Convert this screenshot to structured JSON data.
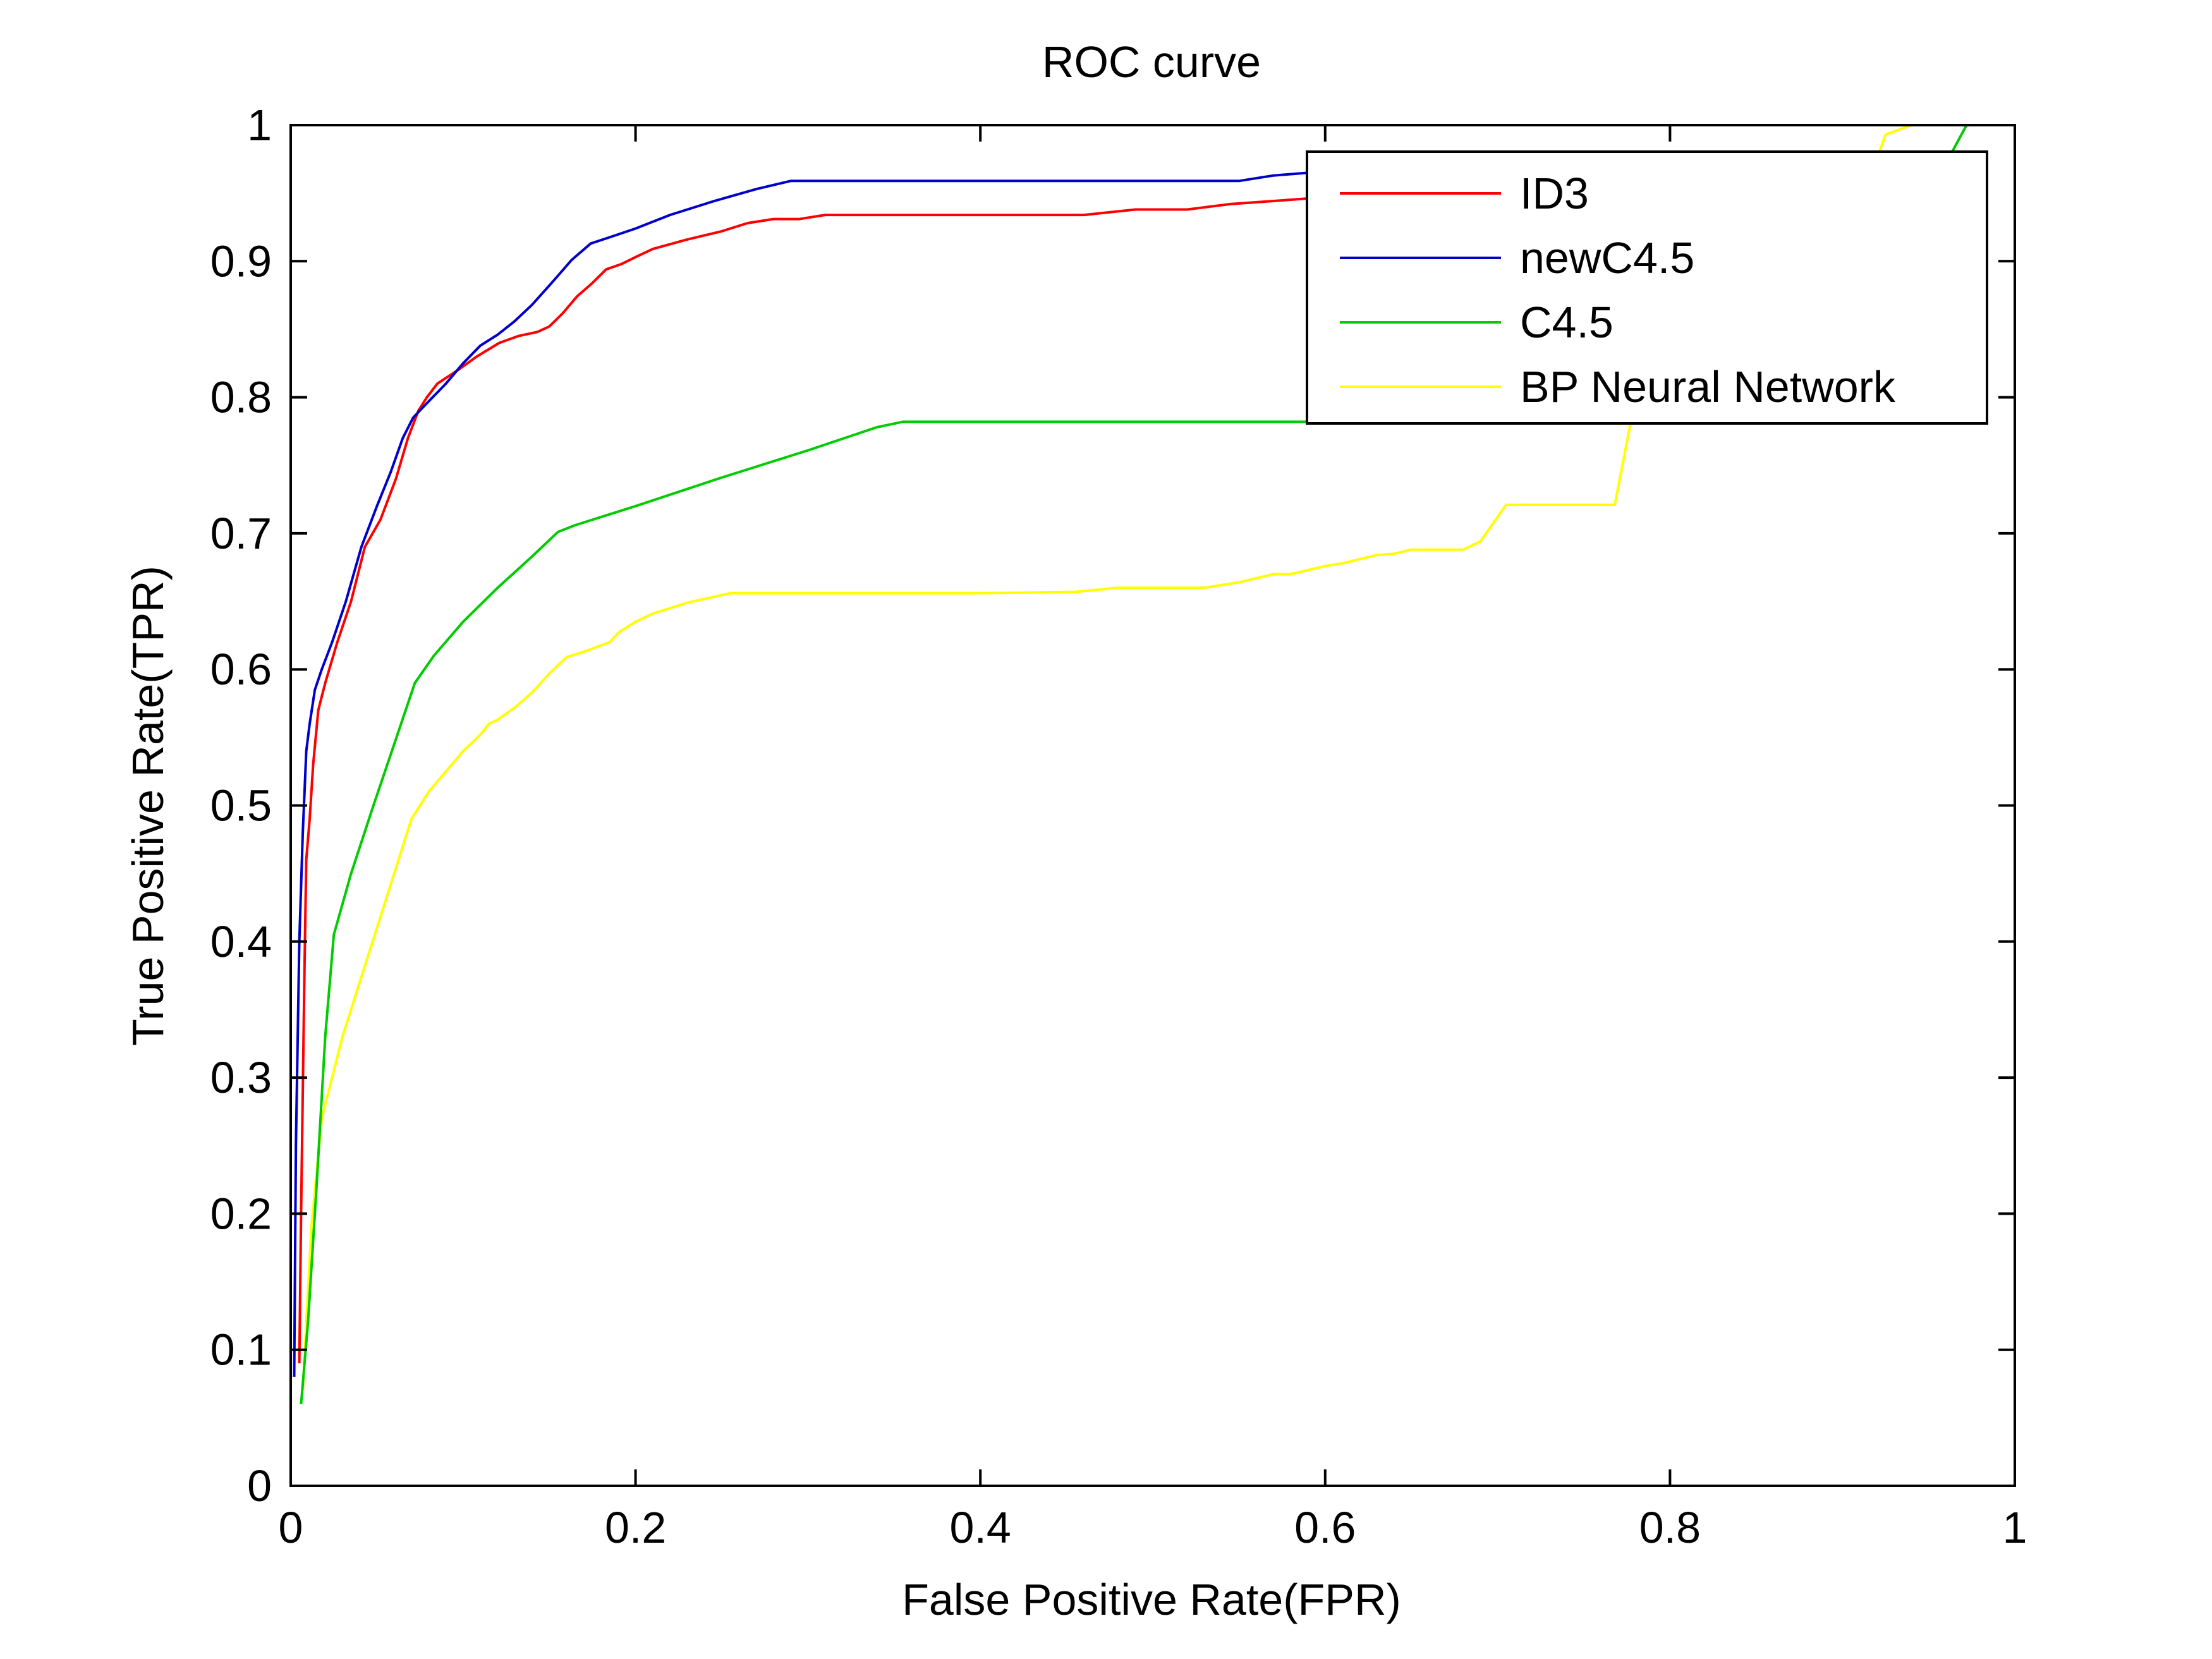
{
  "chart_data": {
    "type": "line",
    "title": "ROC curve",
    "xlabel": "False Positive Rate(FPR)",
    "ylabel": "True Positive Rate(TPR)",
    "xlim": [
      0,
      1
    ],
    "ylim": [
      0,
      1
    ],
    "xticks": [
      0,
      0.2,
      0.4,
      0.6,
      0.8,
      1
    ],
    "yticks": [
      0,
      0.1,
      0.2,
      0.3,
      0.4,
      0.5,
      0.6,
      0.7,
      0.8,
      0.9,
      1
    ],
    "xtick_labels": [
      "0",
      "0.2",
      "0.4",
      "0.6",
      "0.8",
      "1"
    ],
    "ytick_labels": [
      "0",
      "0.1",
      "0.2",
      "0.3",
      "0.4",
      "0.5",
      "0.6",
      "0.7",
      "0.8",
      "0.9",
      "1"
    ],
    "grid": false,
    "legend_position": "top-right",
    "series": [
      {
        "name": "ID3",
        "color": "#ff0000",
        "x": [
          0.005,
          0.006,
          0.008,
          0.009,
          0.011,
          0.013,
          0.016,
          0.02,
          0.027,
          0.035,
          0.043,
          0.052,
          0.061,
          0.068,
          0.074,
          0.079,
          0.085,
          0.097,
          0.108,
          0.121,
          0.132,
          0.143,
          0.15,
          0.158,
          0.166,
          0.175,
          0.183,
          0.192,
          0.2,
          0.21,
          0.23,
          0.25,
          0.265,
          0.28,
          0.295,
          0.31,
          0.33,
          0.37,
          0.42,
          0.46,
          0.49,
          0.52,
          0.545,
          0.6,
          0.66
        ],
        "y": [
          0.09,
          0.2,
          0.38,
          0.46,
          0.49,
          0.53,
          0.57,
          0.59,
          0.62,
          0.65,
          0.69,
          0.71,
          0.74,
          0.77,
          0.79,
          0.8,
          0.81,
          0.82,
          0.83,
          0.84,
          0.845,
          0.848,
          0.852,
          0.862,
          0.874,
          0.884,
          0.894,
          0.898,
          0.903,
          0.909,
          0.916,
          0.922,
          0.928,
          0.931,
          0.931,
          0.934,
          0.934,
          0.934,
          0.934,
          0.934,
          0.938,
          0.938,
          0.942,
          0.947,
          0.952
        ]
      },
      {
        "name": "newC4.5",
        "color": "#0000cc",
        "x": [
          0.002,
          0.003,
          0.005,
          0.007,
          0.009,
          0.011,
          0.014,
          0.018,
          0.024,
          0.032,
          0.041,
          0.05,
          0.058,
          0.065,
          0.071,
          0.08,
          0.09,
          0.1,
          0.11,
          0.12,
          0.13,
          0.14,
          0.152,
          0.163,
          0.174,
          0.186,
          0.2,
          0.22,
          0.245,
          0.27,
          0.29,
          0.33,
          0.38,
          0.45,
          0.5,
          0.55,
          0.57,
          0.59,
          0.6
        ],
        "y": [
          0.08,
          0.25,
          0.4,
          0.48,
          0.54,
          0.56,
          0.585,
          0.6,
          0.62,
          0.65,
          0.69,
          0.72,
          0.745,
          0.77,
          0.785,
          0.797,
          0.81,
          0.825,
          0.838,
          0.846,
          0.856,
          0.868,
          0.885,
          0.901,
          0.913,
          0.918,
          0.924,
          0.934,
          0.944,
          0.953,
          0.959,
          0.959,
          0.959,
          0.959,
          0.959,
          0.959,
          0.963,
          0.965,
          0.968
        ]
      },
      {
        "name": "C4.5",
        "color": "#00cc00",
        "x": [
          0.006,
          0.01,
          0.015,
          0.02,
          0.025,
          0.035,
          0.048,
          0.06,
          0.072,
          0.083,
          0.1,
          0.12,
          0.14,
          0.155,
          0.165,
          0.2,
          0.25,
          0.3,
          0.34,
          0.355,
          0.4,
          0.5,
          0.6,
          0.7,
          0.75,
          0.8,
          0.9,
          0.955,
          0.972
        ],
        "y": [
          0.06,
          0.12,
          0.22,
          0.33,
          0.405,
          0.45,
          0.5,
          0.545,
          0.59,
          0.61,
          0.635,
          0.66,
          0.683,
          0.701,
          0.706,
          0.72,
          0.741,
          0.761,
          0.778,
          0.782,
          0.782,
          0.782,
          0.782,
          0.782,
          0.782,
          0.782,
          0.85,
          0.96,
          1.0
        ]
      },
      {
        "name": "BP Neural Network",
        "color": "#ffff00",
        "x": [
          0.007,
          0.012,
          0.018,
          0.022,
          0.03,
          0.04,
          0.05,
          0.06,
          0.07,
          0.08,
          0.09,
          0.1,
          0.11,
          0.115,
          0.12,
          0.13,
          0.14,
          0.15,
          0.16,
          0.17,
          0.185,
          0.19,
          0.2,
          0.21,
          0.23,
          0.255,
          0.3,
          0.35,
          0.4,
          0.455,
          0.48,
          0.53,
          0.55,
          0.57,
          0.58,
          0.6,
          0.61,
          0.63,
          0.64,
          0.65,
          0.68,
          0.69,
          0.705,
          0.72,
          0.768,
          0.78,
          0.8,
          0.82,
          0.85,
          0.88,
          0.91,
          0.92,
          0.925,
          0.94
        ],
        "y": [
          0.07,
          0.19,
          0.27,
          0.29,
          0.33,
          0.37,
          0.41,
          0.45,
          0.49,
          0.51,
          0.525,
          0.54,
          0.552,
          0.56,
          0.563,
          0.572,
          0.583,
          0.597,
          0.609,
          0.613,
          0.62,
          0.627,
          0.635,
          0.641,
          0.649,
          0.656,
          0.656,
          0.656,
          0.656,
          0.657,
          0.66,
          0.66,
          0.664,
          0.67,
          0.67,
          0.676,
          0.678,
          0.684,
          0.685,
          0.688,
          0.688,
          0.694,
          0.721,
          0.721,
          0.721,
          0.8,
          0.82,
          0.85,
          0.88,
          0.92,
          0.955,
          0.975,
          0.993,
          1.0
        ]
      }
    ]
  }
}
